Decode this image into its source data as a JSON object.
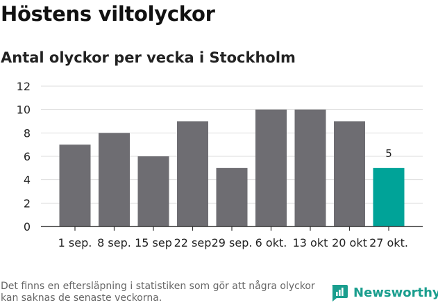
{
  "header": {
    "title": "Höstens viltolyckor",
    "subtitle": "Antal olyckor per vecka i Stockholm"
  },
  "footer": {
    "note": "Det finns en eftersläpning i statistiken som gör att några olyckor kan saknas de senaste veckorna.",
    "brand": "Newsworthy"
  },
  "colors": {
    "bar": "#6e6d72",
    "highlight": "#00a398",
    "grid": "#dddddd",
    "axis": "#333333",
    "brand": "#1a9e8e"
  },
  "chart_data": {
    "type": "bar",
    "title": "Antal olyckor per vecka i Stockholm",
    "categories": [
      "1 sep.",
      "8 sep.",
      "15 sep",
      "22 sep",
      "29 sep.",
      "6 okt.",
      "13 okt",
      "20 okt",
      "27 okt."
    ],
    "values": [
      7,
      8,
      6,
      9,
      5,
      10,
      10,
      9,
      5
    ],
    "highlight_index": 8,
    "data_labels": [
      null,
      null,
      null,
      null,
      null,
      null,
      null,
      null,
      "5"
    ],
    "ylim": [
      0,
      12
    ],
    "yticks": [
      0,
      2,
      4,
      6,
      8,
      10,
      12
    ],
    "grid": true,
    "xlabel": "",
    "ylabel": ""
  }
}
